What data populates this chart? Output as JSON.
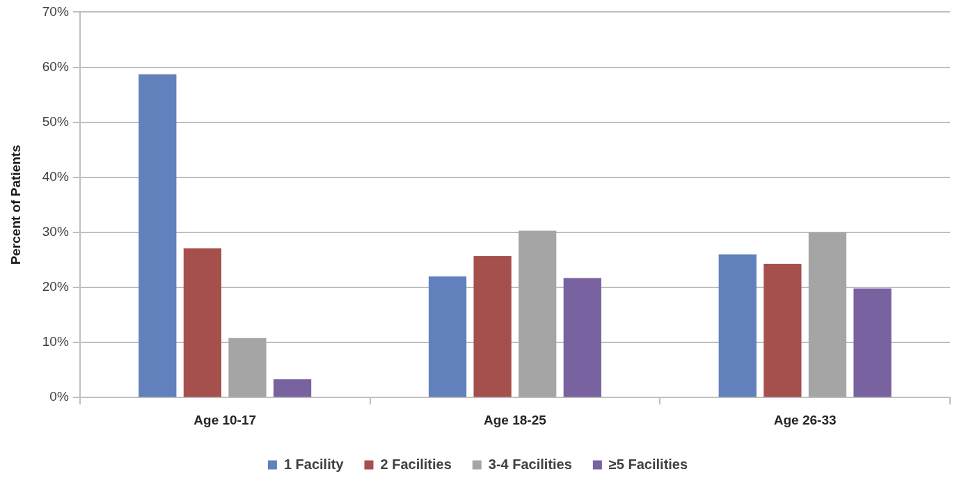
{
  "chart_data": {
    "type": "bar",
    "ylabel": "Percent of Patients",
    "categories": [
      "Age 10-17",
      "Age 18-25",
      "Age 26-33"
    ],
    "series": [
      {
        "name": "1 Facility",
        "color": "#6180bc",
        "values": [
          58.7,
          22,
          26
        ]
      },
      {
        "name": "2 Facilities",
        "color": "#a6504d",
        "values": [
          27.1,
          25.7,
          24.3
        ]
      },
      {
        "name": "3-4 Facilities",
        "color": "#a5a5a5",
        "values": [
          10.8,
          30.3,
          30
        ]
      },
      {
        "name": "≥5 Facilities",
        "color": "#7862a0",
        "values": [
          3.3,
          21.7,
          19.8
        ]
      }
    ],
    "ylim": [
      0,
      70
    ],
    "yticks": [
      {
        "value": 0,
        "label": "0%"
      },
      {
        "value": 10,
        "label": "10%"
      },
      {
        "value": 20,
        "label": "20%"
      },
      {
        "value": 30,
        "label": "30%"
      },
      {
        "value": 40,
        "label": "40%"
      },
      {
        "value": 50,
        "label": "50%"
      },
      {
        "value": 60,
        "label": "60%"
      },
      {
        "value": 70,
        "label": "70%"
      }
    ],
    "grid": "y",
    "legend": "bottom"
  }
}
